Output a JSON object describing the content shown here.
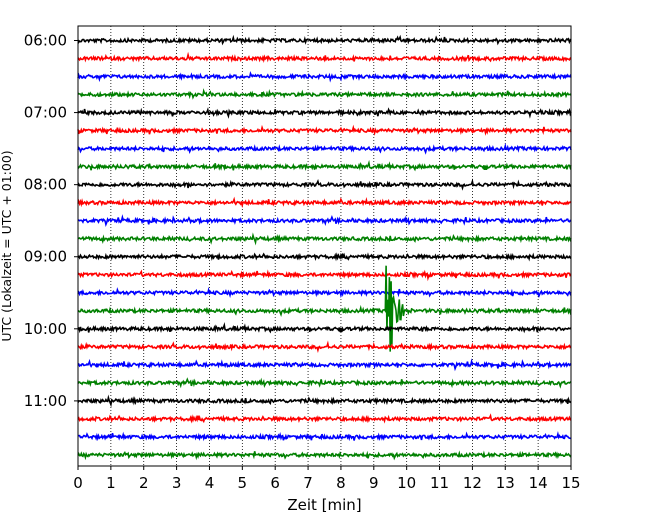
{
  "chart_data": {
    "type": "line",
    "title": "",
    "xlabel": "Zeit  [min]",
    "ylabel": "UTC (Lokalzeit = UTC + 01:00)",
    "xlim": [
      0,
      15
    ],
    "x_ticks": [
      "0",
      "1",
      "2",
      "3",
      "4",
      "5",
      "6",
      "7",
      "8",
      "9",
      "10",
      "11",
      "12",
      "13",
      "14",
      "15"
    ],
    "y_tick_labels": [
      "06:00",
      "07:00",
      "08:00",
      "09:00",
      "10:00",
      "11:00"
    ],
    "trace_interval_minutes": 15,
    "first_trace": "06:00",
    "trace_count": 24,
    "trace_colors": [
      "#000000",
      "#ff0000",
      "#0000ff",
      "#008000"
    ],
    "grid": true,
    "events": [
      {
        "trace": "09:45",
        "time_min": 9.5,
        "description": "Seismic event"
      }
    ]
  }
}
